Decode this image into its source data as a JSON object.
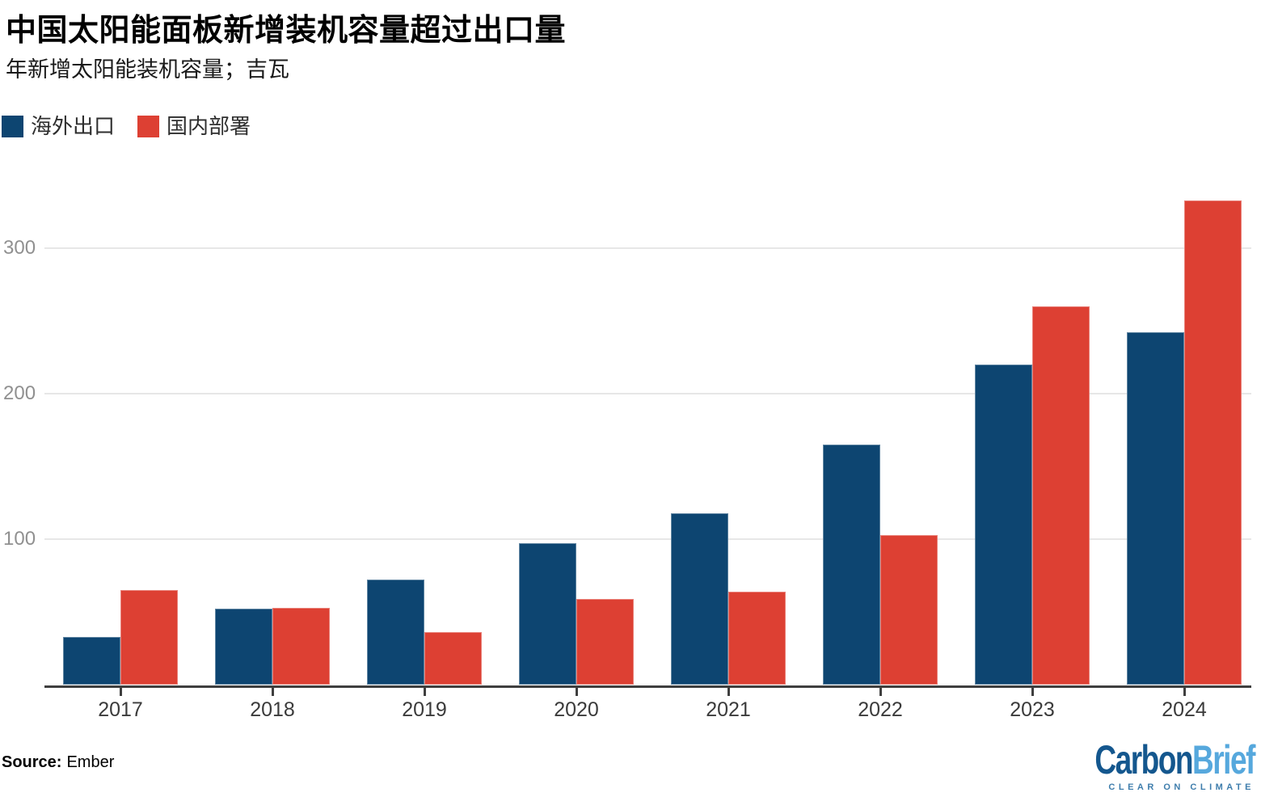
{
  "chart_data": {
    "type": "bar",
    "title": "中国太阳能面板新增装机容量超过出口量",
    "subtitle": "年新增太阳能装机容量；吉瓦",
    "categories": [
      "2017",
      "2018",
      "2019",
      "2020",
      "2021",
      "2022",
      "2023",
      "2024"
    ],
    "series": [
      {
        "name": "海外出口",
        "color": "#0d4571",
        "values": [
          33,
          52,
          72,
          97,
          118,
          165,
          220,
          242
        ]
      },
      {
        "name": "国内部署",
        "color": "#dd4033",
        "values": [
          65,
          53,
          36,
          59,
          64,
          103,
          260,
          333
        ]
      }
    ],
    "ylim": [
      0,
      340
    ],
    "yticks": [
      100,
      200,
      300
    ],
    "grid": "horizontal",
    "legend_position": "top-left",
    "axis_color": "#3f3f3f",
    "grid_color": "#e7e7e7"
  },
  "footer": {
    "source_label": "Source:",
    "source_value": "Ember"
  },
  "logo": {
    "carbon": "Carbon",
    "brief": "Brief",
    "tagline": "CLEAR ON CLIMATE",
    "carbon_color": "#14578e",
    "brief_color": "#56a8dd",
    "tagline_color": "#3e7dac"
  }
}
